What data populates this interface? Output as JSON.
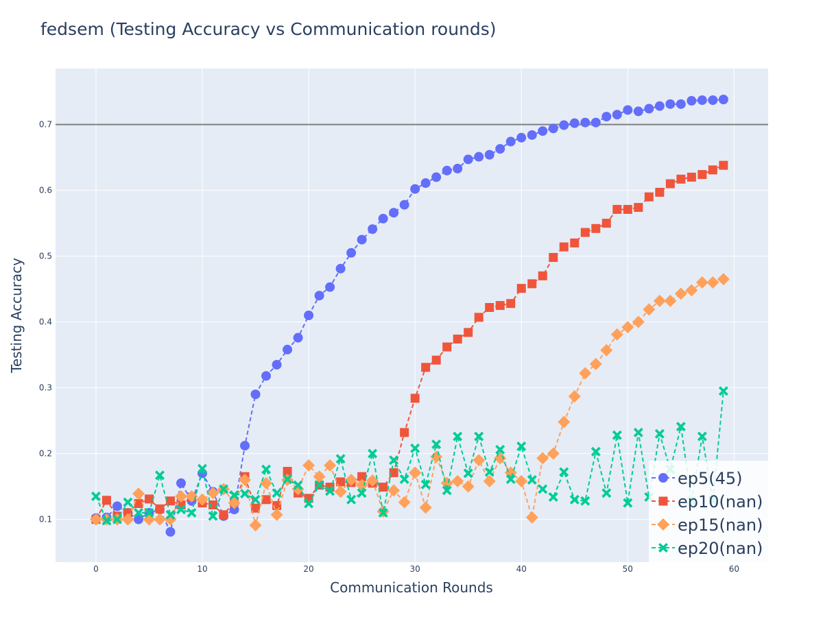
{
  "chart_data": {
    "type": "line",
    "title": "fedsem (Testing Accuracy vs Communication rounds)",
    "xlabel": "Communication Rounds",
    "ylabel": "Testing Accuracy",
    "xlim": [
      -3.8,
      63.2
    ],
    "ylim": [
      0.035,
      0.785
    ],
    "xticks": [
      0,
      10,
      20,
      30,
      40,
      50,
      60
    ],
    "yticks": [
      0.1,
      0.2,
      0.3,
      0.4,
      0.5,
      0.6,
      0.7
    ],
    "reference_line": {
      "y": 0.7,
      "color": "#7f7f7f"
    },
    "grid": true,
    "plot_background": "#e5ecf6",
    "legend_position": "bottom-right",
    "series": [
      {
        "name": "ep5(45)",
        "color": "#636efa",
        "marker": "circle",
        "x": [
          0,
          1,
          2,
          3,
          4,
          5,
          6,
          7,
          8,
          9,
          10,
          11,
          12,
          13,
          14,
          15,
          16,
          17,
          18,
          19,
          20,
          21,
          22,
          23,
          24,
          25,
          26,
          27,
          28,
          29,
          30,
          31,
          32,
          33,
          34,
          35,
          36,
          37,
          38,
          39,
          40,
          41,
          42,
          43,
          44,
          45,
          46,
          47,
          48,
          49,
          50,
          51,
          52,
          53,
          54,
          55,
          56,
          57,
          58,
          59
        ],
        "y": [
          0.102,
          0.103,
          0.12,
          0.11,
          0.1,
          0.11,
          0.115,
          0.081,
          0.155,
          0.128,
          0.17,
          0.142,
          0.105,
          0.115,
          0.212,
          0.29,
          0.318,
          0.335,
          0.358,
          0.376,
          0.41,
          0.44,
          0.453,
          0.481,
          0.505,
          0.525,
          0.541,
          0.557,
          0.566,
          0.578,
          0.602,
          0.611,
          0.62,
          0.63,
          0.633,
          0.647,
          0.651,
          0.654,
          0.663,
          0.674,
          0.68,
          0.684,
          0.69,
          0.694,
          0.699,
          0.702,
          0.703,
          0.703,
          0.712,
          0.715,
          0.722,
          0.72,
          0.724,
          0.728,
          0.731,
          0.731,
          0.736,
          0.737,
          0.737,
          0.738
        ]
      },
      {
        "name": "ep10(nan)",
        "color": "#ef553b",
        "marker": "square",
        "x": [
          0,
          1,
          2,
          3,
          4,
          5,
          6,
          7,
          8,
          9,
          10,
          11,
          12,
          13,
          14,
          15,
          16,
          17,
          18,
          19,
          20,
          21,
          22,
          23,
          24,
          25,
          26,
          27,
          28,
          29,
          30,
          31,
          32,
          33,
          34,
          35,
          36,
          37,
          38,
          39,
          40,
          41,
          42,
          43,
          44,
          45,
          46,
          47,
          48,
          49,
          50,
          51,
          52,
          53,
          54,
          55,
          56,
          57,
          58,
          59
        ],
        "y": [
          0.1,
          0.129,
          0.105,
          0.11,
          0.124,
          0.131,
          0.116,
          0.128,
          0.122,
          0.134,
          0.125,
          0.122,
          0.107,
          0.127,
          0.165,
          0.117,
          0.13,
          0.121,
          0.173,
          0.14,
          0.132,
          0.152,
          0.149,
          0.157,
          0.156,
          0.165,
          0.155,
          0.149,
          0.171,
          0.232,
          0.284,
          0.331,
          0.342,
          0.362,
          0.374,
          0.384,
          0.407,
          0.422,
          0.425,
          0.428,
          0.451,
          0.458,
          0.47,
          0.498,
          0.514,
          0.52,
          0.536,
          0.542,
          0.55,
          0.571,
          0.571,
          0.574,
          0.59,
          0.597,
          0.61,
          0.617,
          0.62,
          0.624,
          0.631,
          0.638
        ]
      },
      {
        "name": "ep15(nan)",
        "color": "#ffa15a",
        "marker": "diamond",
        "x": [
          0,
          1,
          2,
          3,
          4,
          5,
          6,
          7,
          8,
          9,
          10,
          11,
          12,
          13,
          14,
          15,
          16,
          17,
          18,
          19,
          20,
          21,
          22,
          23,
          24,
          25,
          26,
          27,
          28,
          29,
          30,
          31,
          32,
          33,
          34,
          35,
          36,
          37,
          38,
          39,
          40,
          41,
          42,
          43,
          44,
          45,
          46,
          47,
          48,
          49,
          50,
          51,
          52,
          53,
          54,
          55,
          56,
          57,
          58,
          59
        ],
        "y": [
          0.1,
          0.1,
          0.1,
          0.1,
          0.139,
          0.1,
          0.1,
          0.1,
          0.135,
          0.135,
          0.13,
          0.14,
          0.146,
          0.125,
          0.16,
          0.091,
          0.155,
          0.107,
          0.16,
          0.146,
          0.182,
          0.165,
          0.182,
          0.142,
          0.16,
          0.152,
          0.159,
          0.112,
          0.144,
          0.126,
          0.171,
          0.118,
          0.195,
          0.155,
          0.158,
          0.15,
          0.19,
          0.158,
          0.193,
          0.171,
          0.158,
          0.103,
          0.193,
          0.2,
          0.248,
          0.287,
          0.322,
          0.336,
          0.357,
          0.381,
          0.392,
          0.4,
          0.419,
          0.432,
          0.432,
          0.443,
          0.448,
          0.46,
          0.46,
          0.465
        ]
      },
      {
        "name": "ep20(nan)",
        "color": "#00cc96",
        "marker": "x",
        "x": [
          0,
          1,
          2,
          3,
          4,
          5,
          6,
          7,
          8,
          9,
          10,
          11,
          12,
          13,
          14,
          15,
          16,
          17,
          18,
          19,
          20,
          21,
          22,
          23,
          24,
          25,
          26,
          27,
          28,
          29,
          30,
          31,
          32,
          33,
          34,
          35,
          36,
          37,
          38,
          39,
          40,
          41,
          42,
          43,
          44,
          45,
          46,
          47,
          48,
          49,
          50,
          51,
          52,
          53,
          54,
          55,
          56,
          57,
          58,
          59
        ],
        "y": [
          0.135,
          0.098,
          0.1,
          0.126,
          0.11,
          0.11,
          0.167,
          0.107,
          0.115,
          0.11,
          0.177,
          0.105,
          0.146,
          0.137,
          0.139,
          0.13,
          0.176,
          0.14,
          0.161,
          0.152,
          0.124,
          0.152,
          0.143,
          0.192,
          0.13,
          0.14,
          0.2,
          0.11,
          0.19,
          0.161,
          0.208,
          0.153,
          0.214,
          0.144,
          0.226,
          0.17,
          0.226,
          0.172,
          0.206,
          0.161,
          0.211,
          0.16,
          0.146,
          0.134,
          0.172,
          0.13,
          0.128,
          0.203,
          0.14,
          0.228,
          0.125,
          0.232,
          0.134,
          0.23,
          0.176,
          0.241,
          0.128,
          0.226,
          0.129,
          0.295
        ]
      }
    ]
  }
}
